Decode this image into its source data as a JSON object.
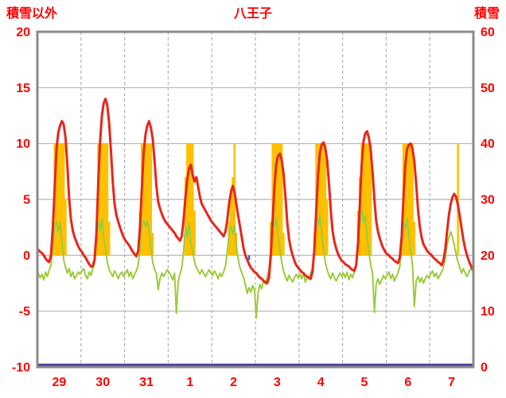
{
  "colors": {
    "label": "#ff0000",
    "grid": "#b3b3b3",
    "border": "#8a8a8a",
    "background": "#ffffff",
    "temperature": "#e8251b",
    "green_series": "#9ccb3b",
    "sunshine": "#ffc000",
    "snow": "#4b3e9e",
    "precipitation": "#3a66c4"
  },
  "chart_data": {
    "type": "line",
    "title": "八王子",
    "left_axis": {
      "label": "積雪以外",
      "min": -10,
      "max": 20,
      "ticks": [
        20,
        15,
        10,
        5,
        0,
        -5,
        -10
      ]
    },
    "right_axis": {
      "label": "積雪",
      "min": 0,
      "max": 60,
      "ticks": [
        60,
        50,
        40,
        30,
        20,
        10,
        0
      ]
    },
    "x_labels": [
      "29",
      "30",
      "31",
      "1",
      "2",
      "3",
      "4",
      "5",
      "6",
      "7"
    ],
    "days": 10,
    "hours_per_day": 24,
    "grid": {
      "horizontal_values": [
        15,
        10,
        5,
        0,
        -5
      ],
      "vertical_day_boundaries": true
    },
    "series": [
      {
        "name": "sunshine",
        "type": "bar",
        "axis": "left",
        "color_key": "sunshine",
        "values": [
          0,
          0,
          0,
          0,
          0,
          0,
          0,
          0,
          3,
          10,
          10,
          10,
          10,
          10,
          10,
          5,
          0,
          0,
          0,
          0,
          0,
          0,
          0,
          0,
          0,
          0,
          0,
          0,
          0,
          0,
          0,
          0,
          2,
          10,
          10,
          10,
          10,
          10,
          10,
          3,
          0,
          0,
          0,
          0,
          0,
          0,
          0,
          0,
          0,
          0,
          0,
          0,
          0,
          0,
          0,
          0,
          4,
          10,
          10,
          10,
          10,
          10,
          10,
          2,
          0,
          0,
          0,
          0,
          0,
          0,
          0,
          0,
          0,
          0,
          0,
          0,
          0,
          0,
          0,
          0,
          0,
          7,
          10,
          10,
          10,
          10,
          4,
          0,
          0,
          0,
          0,
          0,
          0,
          0,
          0,
          0,
          0,
          0,
          0,
          0,
          0,
          0,
          0,
          0,
          0,
          3,
          6,
          7,
          10,
          2,
          0,
          0,
          0,
          0,
          0,
          0,
          0,
          0,
          0,
          0,
          0,
          0,
          0,
          0,
          0,
          0,
          0,
          0,
          3,
          10,
          10,
          10,
          10,
          10,
          10,
          2,
          0,
          0,
          0,
          0,
          0,
          0,
          0,
          0,
          0,
          0,
          0,
          0,
          0,
          0,
          0,
          0,
          2,
          10,
          10,
          10,
          10,
          10,
          10,
          5,
          0,
          0,
          0,
          0,
          0,
          0,
          0,
          0,
          0,
          0,
          0,
          0,
          0,
          0,
          0,
          0,
          4,
          7,
          10,
          10,
          10,
          10,
          10,
          10,
          0,
          0,
          0,
          0,
          0,
          0,
          0,
          0,
          0,
          0,
          0,
          0,
          0,
          0,
          0,
          0,
          2,
          10,
          10,
          10,
          10,
          10,
          10,
          3,
          0,
          0,
          0,
          0,
          0,
          0,
          0,
          0,
          0,
          0,
          0,
          0,
          0,
          0,
          0,
          0,
          0,
          0,
          0,
          0,
          0,
          0,
          0,
          10,
          0,
          0,
          0,
          0,
          0,
          0,
          0,
          0
        ]
      },
      {
        "name": "green-series",
        "type": "line",
        "axis": "left",
        "color_key": "green_series",
        "stroke_width": 2,
        "values": [
          -1.6,
          -2.0,
          -1.7,
          -2.2,
          -1.5,
          -1.9,
          -1.3,
          -0.9,
          0.6,
          2.6,
          3.1,
          2.1,
          3.0,
          1.1,
          -0.4,
          -1.1,
          -1.6,
          -1.2,
          -1.9,
          -1.5,
          -2.1,
          -1.8,
          -1.5,
          -1.7,
          -1.4,
          -1.2,
          -1.8,
          -2.1,
          -1.5,
          -1.8,
          -1.2,
          -0.7,
          1.1,
          3.1,
          2.1,
          3.3,
          1.6,
          0.6,
          -0.6,
          -1.3,
          -1.6,
          -1.9,
          -1.4,
          -1.7,
          -2.1,
          -1.7,
          -1.5,
          -1.9,
          -1.6,
          -1.3,
          -1.9,
          -1.5,
          -2.1,
          -1.7,
          -1.4,
          -0.9,
          0.6,
          2.9,
          3.1,
          2.6,
          3.1,
          2.1,
          0.6,
          -0.6,
          -1.3,
          -1.6,
          -3.1,
          -2.1,
          -1.6,
          -1.9,
          -1.6,
          -1.3,
          -1.5,
          -1.8,
          -2.2,
          -1.6,
          -5.2,
          -2.4,
          -1.7,
          -1.1,
          0.4,
          2.6,
          1.6,
          2.9,
          1.1,
          0.3,
          -0.6,
          -1.1,
          -1.4,
          -1.7,
          -1.3,
          -1.6,
          -1.9,
          -1.6,
          -1.3,
          -1.6,
          -1.8,
          -1.4,
          -1.7,
          -2.1,
          -1.6,
          -1.9,
          -1.5,
          -1.0,
          0.3,
          1.9,
          2.6,
          1.9,
          2.7,
          0.9,
          -0.3,
          -1.1,
          -1.6,
          -2.0,
          -2.6,
          -3.4,
          -2.9,
          -3.3,
          -2.7,
          -3.1,
          -5.6,
          -3.4,
          -2.6,
          -3.0,
          -2.2,
          -2.6,
          -1.9,
          -1.3,
          0.6,
          3.6,
          2.6,
          3.4,
          1.6,
          0.6,
          -0.6,
          -1.4,
          -1.9,
          -2.3,
          -1.8,
          -2.1,
          -2.4,
          -2.0,
          -1.7,
          -2.0,
          -1.7,
          -2.1,
          -1.6,
          -2.4,
          -1.9,
          -2.2,
          -1.6,
          -1.1,
          0.6,
          4.1,
          2.6,
          3.6,
          1.9,
          0.6,
          -0.6,
          -1.3,
          -1.8,
          -2.1,
          -1.6,
          -2.0,
          -2.3,
          -1.9,
          -1.6,
          -1.9,
          -1.6,
          -2.0,
          -1.5,
          -2.2,
          -1.7,
          -2.0,
          -1.5,
          -0.9,
          0.9,
          2.6,
          4.1,
          2.9,
          3.6,
          1.6,
          0.3,
          -0.9,
          -1.6,
          -5.1,
          -2.6,
          -2.1,
          -2.6,
          -2.2,
          -1.8,
          -2.1,
          -1.8,
          -1.5,
          -2.1,
          -1.7,
          -2.3,
          -1.9,
          -1.6,
          -1.0,
          0.6,
          3.1,
          2.3,
          3.3,
          1.6,
          0.4,
          -0.9,
          -4.6,
          -2.3,
          -1.9,
          -2.4,
          -2.0,
          -2.5,
          -2.1,
          -1.8,
          -2.0,
          -1.7,
          -1.4,
          -1.9,
          -1.6,
          -2.1,
          -1.8,
          -1.5,
          -1.1,
          -0.3,
          0.9,
          1.6,
          2.1,
          1.6,
          0.9,
          0.1,
          -0.6,
          -1.1,
          -1.6,
          -1.2,
          -1.6,
          -1.9,
          -1.5,
          -1.2,
          -1.4
        ]
      },
      {
        "name": "temperature",
        "type": "line",
        "axis": "left",
        "color_key": "temperature",
        "stroke_width": 3,
        "values": [
          0.5,
          0.3,
          0.2,
          0.0,
          -0.3,
          -0.5,
          -0.6,
          0.0,
          2.5,
          6.0,
          9.5,
          11.0,
          11.6,
          12.0,
          11.7,
          10.5,
          8.0,
          5.0,
          3.2,
          2.2,
          1.6,
          1.2,
          0.8,
          0.5,
          0.3,
          0.0,
          -0.2,
          -0.5,
          -0.8,
          -1.0,
          -1.0,
          -0.4,
          2.0,
          6.5,
          10.2,
          12.5,
          13.6,
          14.0,
          13.4,
          11.8,
          9.3,
          6.5,
          4.6,
          3.6,
          3.0,
          2.5,
          2.0,
          1.6,
          1.3,
          1.1,
          0.9,
          0.6,
          0.3,
          0.1,
          -0.1,
          0.4,
          2.6,
          6.0,
          9.2,
          10.8,
          11.6,
          12.0,
          11.4,
          10.4,
          8.4,
          6.2,
          4.8,
          4.2,
          3.7,
          3.3,
          3.0,
          2.8,
          2.6,
          2.4,
          2.2,
          2.0,
          1.7,
          1.5,
          1.3,
          1.7,
          3.2,
          5.2,
          6.8,
          7.8,
          8.1,
          7.2,
          6.6,
          7.0,
          6.1,
          5.2,
          4.6,
          4.3,
          4.0,
          3.7,
          3.4,
          3.1,
          2.9,
          2.7,
          2.5,
          2.3,
          2.1,
          1.9,
          1.7,
          2.1,
          3.1,
          4.6,
          5.6,
          6.2,
          5.7,
          4.6,
          3.6,
          2.6,
          1.6,
          0.6,
          0.0,
          -0.4,
          -0.8,
          -1.1,
          -1.3,
          -1.5,
          -1.6,
          -1.8,
          -2.0,
          -2.1,
          -2.3,
          -2.4,
          -2.5,
          -2.0,
          0.0,
          3.2,
          6.2,
          8.2,
          8.9,
          9.1,
          8.5,
          7.3,
          5.3,
          3.0,
          1.5,
          0.6,
          0.0,
          -0.5,
          -0.9,
          -1.1,
          -1.3,
          -1.5,
          -1.6,
          -1.8,
          -1.9,
          -2.0,
          -2.1,
          -1.4,
          0.6,
          4.0,
          7.2,
          9.2,
          9.9,
          10.1,
          9.6,
          8.5,
          6.4,
          4.0,
          2.2,
          1.2,
          0.6,
          0.1,
          -0.2,
          -0.5,
          -0.6,
          -0.8,
          -0.9,
          -1.0,
          -1.2,
          -1.3,
          -1.4,
          -0.9,
          1.1,
          4.6,
          8.1,
          10.2,
          10.9,
          11.1,
          10.5,
          9.4,
          7.4,
          5.0,
          3.1,
          2.1,
          1.5,
          1.0,
          0.6,
          0.3,
          0.1,
          0.0,
          -0.2,
          -0.3,
          -0.5,
          -0.6,
          -0.7,
          -0.2,
          1.6,
          5.1,
          8.1,
          9.5,
          9.9,
          10.0,
          9.5,
          8.4,
          6.4,
          4.1,
          2.6,
          1.6,
          1.0,
          0.7,
          0.4,
          0.2,
          0.1,
          -0.1,
          -0.3,
          -0.4,
          -0.6,
          -0.7,
          -0.9,
          -0.5,
          0.5,
          2.1,
          3.6,
          4.6,
          5.2,
          5.5,
          5.2,
          4.5,
          3.5,
          2.4,
          1.4,
          0.6,
          0.0,
          -0.5,
          -0.9,
          -1.2
        ]
      }
    ],
    "snow_depth": {
      "name": "snow-depth",
      "axis": "right",
      "constant_value": 0
    },
    "precipitation_tick": {
      "index": 116,
      "value": 0.5
    }
  }
}
